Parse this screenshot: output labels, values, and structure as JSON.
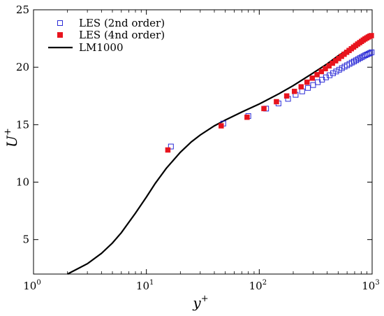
{
  "chart_data": {
    "type": "scatter",
    "xscale": "log",
    "xlim": [
      1,
      1000
    ],
    "ylim": [
      2,
      25
    ],
    "xlabel": "y",
    "xlabel_sup": "+",
    "ylabel": "U",
    "ylabel_sup": "+",
    "xticks": [
      {
        "base": "10",
        "exp": "0",
        "value": 1
      },
      {
        "base": "10",
        "exp": "1",
        "value": 10
      },
      {
        "base": "10",
        "exp": "2",
        "value": 100
      },
      {
        "base": "10",
        "exp": "3",
        "value": 1000
      }
    ],
    "yticks": [
      5,
      10,
      15,
      20,
      25
    ],
    "grid": false,
    "legend_position": "top-left",
    "series": [
      {
        "name": "LES (2nd order)",
        "marker": "open-square",
        "color": "#2b2bd6",
        "x": [
          16.5,
          48,
          80,
          115,
          148,
          180,
          210,
          240,
          270,
          300,
          330,
          360,
          390,
          420,
          450,
          480,
          510,
          540,
          570,
          600,
          630,
          660,
          690,
          720,
          750,
          780,
          810,
          840,
          870,
          900,
          930,
          960,
          990
        ],
        "y": [
          13.1,
          15.1,
          15.75,
          16.4,
          16.85,
          17.25,
          17.6,
          17.9,
          18.2,
          18.45,
          18.7,
          18.92,
          19.12,
          19.3,
          19.48,
          19.63,
          19.78,
          19.92,
          20.05,
          20.17,
          20.29,
          20.4,
          20.5,
          20.6,
          20.7,
          20.79,
          20.88,
          20.96,
          21.04,
          21.11,
          21.18,
          21.24,
          21.3
        ]
      },
      {
        "name": "LES (4nd order)",
        "marker": "filled-square",
        "color": "#e8141e",
        "x": [
          15.5,
          46,
          78,
          110,
          142,
          175,
          205,
          235,
          265,
          295,
          325,
          355,
          385,
          415,
          445,
          475,
          505,
          535,
          565,
          595,
          625,
          655,
          685,
          715,
          745,
          775,
          805,
          835,
          865,
          895,
          925,
          955,
          985
        ],
        "y": [
          12.8,
          14.9,
          15.65,
          16.4,
          17.0,
          17.5,
          17.9,
          18.3,
          18.7,
          19.05,
          19.35,
          19.62,
          19.88,
          20.12,
          20.35,
          20.56,
          20.76,
          20.95,
          21.13,
          21.3,
          21.46,
          21.61,
          21.75,
          21.89,
          22.02,
          22.14,
          22.25,
          22.36,
          22.46,
          22.55,
          22.63,
          22.7,
          22.75
        ]
      },
      {
        "name": "LM1000",
        "marker": "line",
        "color": "#000000",
        "x": [
          2,
          3,
          4,
          5,
          6,
          8,
          10,
          12,
          15,
          20,
          25,
          30,
          40,
          50,
          70,
          100,
          150,
          200,
          300,
          400,
          500,
          700,
          1000
        ],
        "y": [
          2.0,
          2.9,
          3.8,
          4.7,
          5.6,
          7.3,
          8.7,
          9.9,
          11.2,
          12.6,
          13.5,
          14.1,
          14.9,
          15.4,
          16.1,
          16.8,
          17.7,
          18.4,
          19.5,
          20.3,
          21.0,
          21.9,
          22.85
        ]
      }
    ]
  }
}
